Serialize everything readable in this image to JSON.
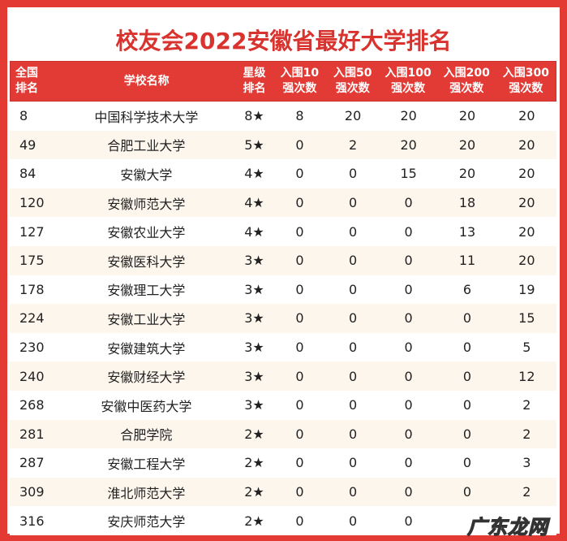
{
  "title": "校友会2022安徽省最好大学排名",
  "colors": {
    "accent_red": "#e23b36",
    "title_red": "#d8332e",
    "row_alt": "#fdf6ec"
  },
  "header": {
    "national_rank": [
      "全国",
      "排名"
    ],
    "school_name": "学校名称",
    "star_rank": [
      "星级",
      "排名"
    ],
    "top10": [
      "入围10",
      "强次数"
    ],
    "top50": [
      "入围50",
      "强次数"
    ],
    "top100": [
      "入围100",
      "强次数"
    ],
    "top200": [
      "入围200",
      "强次数"
    ],
    "top300": [
      "入围300",
      "强次数"
    ]
  },
  "rows": [
    {
      "rank": "8",
      "name": "中国科学技术大学",
      "stars": "8★",
      "t10": "8",
      "t50": "20",
      "t100": "20",
      "t200": "20",
      "t300": "20"
    },
    {
      "rank": "49",
      "name": "合肥工业大学",
      "stars": "5★",
      "t10": "0",
      "t50": "2",
      "t100": "20",
      "t200": "20",
      "t300": "20"
    },
    {
      "rank": "84",
      "name": "安徽大学",
      "stars": "4★",
      "t10": "0",
      "t50": "0",
      "t100": "15",
      "t200": "20",
      "t300": "20"
    },
    {
      "rank": "120",
      "name": "安徽师范大学",
      "stars": "4★",
      "t10": "0",
      "t50": "0",
      "t100": "0",
      "t200": "18",
      "t300": "20"
    },
    {
      "rank": "127",
      "name": "安徽农业大学",
      "stars": "4★",
      "t10": "0",
      "t50": "0",
      "t100": "0",
      "t200": "13",
      "t300": "20"
    },
    {
      "rank": "175",
      "name": "安徽医科大学",
      "stars": "3★",
      "t10": "0",
      "t50": "0",
      "t100": "0",
      "t200": "11",
      "t300": "20"
    },
    {
      "rank": "178",
      "name": "安徽理工大学",
      "stars": "3★",
      "t10": "0",
      "t50": "0",
      "t100": "0",
      "t200": "6",
      "t300": "19"
    },
    {
      "rank": "224",
      "name": "安徽工业大学",
      "stars": "3★",
      "t10": "0",
      "t50": "0",
      "t100": "0",
      "t200": "0",
      "t300": "15"
    },
    {
      "rank": "230",
      "name": "安徽建筑大学",
      "stars": "3★",
      "t10": "0",
      "t50": "0",
      "t100": "0",
      "t200": "0",
      "t300": "5"
    },
    {
      "rank": "240",
      "name": "安徽财经大学",
      "stars": "3★",
      "t10": "0",
      "t50": "0",
      "t100": "0",
      "t200": "0",
      "t300": "12"
    },
    {
      "rank": "268",
      "name": "安徽中医药大学",
      "stars": "3★",
      "t10": "0",
      "t50": "0",
      "t100": "0",
      "t200": "0",
      "t300": "2"
    },
    {
      "rank": "281",
      "name": "合肥学院",
      "stars": "2★",
      "t10": "0",
      "t50": "0",
      "t100": "0",
      "t200": "0",
      "t300": "2"
    },
    {
      "rank": "287",
      "name": "安徽工程大学",
      "stars": "2★",
      "t10": "0",
      "t50": "0",
      "t100": "0",
      "t200": "0",
      "t300": "3"
    },
    {
      "rank": "309",
      "name": "淮北师范大学",
      "stars": "2★",
      "t10": "0",
      "t50": "0",
      "t100": "0",
      "t200": "0",
      "t300": "2"
    },
    {
      "rank": "316",
      "name": "安庆师范大学",
      "stars": "2★",
      "t10": "0",
      "t50": "0",
      "t100": "0",
      "t200": "",
      "t300": ""
    }
  ],
  "watermark": "广东龙网"
}
